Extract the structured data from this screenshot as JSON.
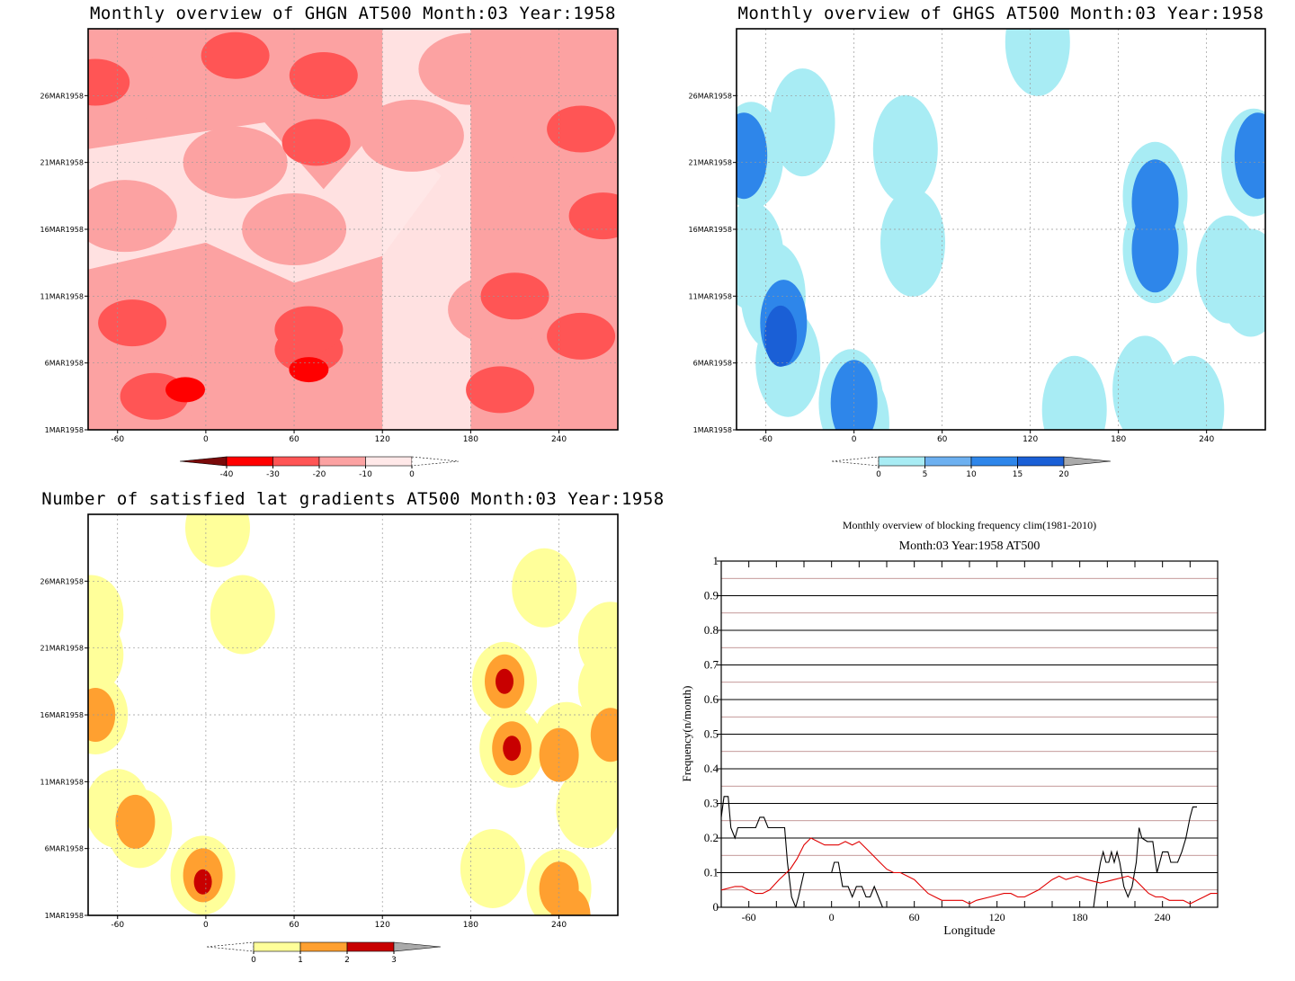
{
  "chart_data": [
    {
      "type": "heatmap",
      "title": "Monthly overview of GHGN AT500 Month:03 Year:1958",
      "xlabel": "",
      "ylabel": "",
      "x_ticks": [
        "-60",
        "0",
        "60",
        "120",
        "180",
        "240"
      ],
      "x_tick_values": [
        -60,
        0,
        60,
        120,
        180,
        240
      ],
      "xlim": [
        -80,
        280
      ],
      "y_ticks": [
        "1MAR1958",
        "6MAR1958",
        "11MAR1958",
        "16MAR1958",
        "21MAR1958",
        "26MAR1958"
      ],
      "y_tick_values": [
        1,
        6,
        11,
        16,
        21,
        26
      ],
      "ylim": [
        1,
        31
      ],
      "colorbar": {
        "labels": [
          "-40",
          "-30",
          "-20",
          "-10",
          "0"
        ],
        "levels": [
          -40,
          -30,
          -20,
          -10,
          0
        ],
        "colors": [
          "#7a0a0a",
          "#ff0000",
          "#ff5555",
          "#fca2a2",
          "#ffe8e8",
          "#ffffff"
        ]
      },
      "grid": true,
      "blobs": [
        {
          "x": 70,
          "y": 5.5,
          "level": -30
        },
        {
          "x": -14,
          "y": 4,
          "level": -30
        },
        {
          "x": 70,
          "y": 7,
          "level": -20
        },
        {
          "x": 70,
          "y": 8.5,
          "level": -20
        },
        {
          "x": -35,
          "y": 3.5,
          "level": -20
        },
        {
          "x": -50,
          "y": 9,
          "level": -20
        },
        {
          "x": 200,
          "y": 4,
          "level": -20
        },
        {
          "x": 210,
          "y": 11,
          "level": -20
        },
        {
          "x": 75,
          "y": 22.5,
          "level": -20
        },
        {
          "x": 80,
          "y": 27.5,
          "level": -20
        },
        {
          "x": 20,
          "y": 29,
          "level": -20
        },
        {
          "x": 255,
          "y": 23.5,
          "level": -20
        },
        {
          "x": 270,
          "y": 17,
          "level": -20
        },
        {
          "x": 255,
          "y": 8,
          "level": -20
        },
        {
          "x": -75,
          "y": 27,
          "level": -20
        },
        {
          "x": 55,
          "y": 8,
          "level": -10
        },
        {
          "x": -40,
          "y": 8,
          "level": -10
        },
        {
          "x": 240,
          "y": 7,
          "level": -10
        },
        {
          "x": 200,
          "y": 10,
          "level": -10
        },
        {
          "x": 240,
          "y": 20,
          "level": -10
        },
        {
          "x": 60,
          "y": 28,
          "level": -10
        },
        {
          "x": -20,
          "y": 26.5,
          "level": -10
        },
        {
          "x": -55,
          "y": 17,
          "level": -10
        },
        {
          "x": 20,
          "y": 21,
          "level": -10
        },
        {
          "x": 140,
          "y": 23,
          "level": -10
        },
        {
          "x": 180,
          "y": 28,
          "level": -10
        },
        {
          "x": 260,
          "y": 29,
          "level": -10
        },
        {
          "x": 60,
          "y": 16,
          "level": -10
        },
        {
          "x": 265,
          "y": 12,
          "level": -10
        }
      ]
    },
    {
      "type": "heatmap",
      "title": "Monthly overview of GHGS AT500 Month:03 Year:1958",
      "xlabel": "",
      "ylabel": "",
      "x_ticks": [
        "-60",
        "0",
        "60",
        "120",
        "180",
        "240"
      ],
      "x_tick_values": [
        -60,
        0,
        60,
        120,
        180,
        240
      ],
      "xlim": [
        -80,
        280
      ],
      "y_ticks": [
        "1MAR1958",
        "6MAR1958",
        "11MAR1958",
        "16MAR1958",
        "21MAR1958",
        "26MAR1958"
      ],
      "y_tick_values": [
        1,
        6,
        11,
        16,
        21,
        26
      ],
      "ylim": [
        1,
        31
      ],
      "colorbar": {
        "labels": [
          "0",
          "5",
          "10",
          "15",
          "20"
        ],
        "levels": [
          0,
          5,
          10,
          15,
          20
        ],
        "colors": [
          "#ffffff",
          "#a8ecf4",
          "#6db0f0",
          "#2e86ea",
          "#1a5fd6",
          "#aaaaaa"
        ]
      },
      "grid": true,
      "blobs": [
        {
          "x": -50,
          "y": 8,
          "level": 15
        },
        {
          "x": -48,
          "y": 9,
          "level": 10
        },
        {
          "x": -55,
          "y": 11,
          "level": 5
        },
        {
          "x": -45,
          "y": 6,
          "level": 5
        },
        {
          "x": -70,
          "y": 14,
          "level": 5
        },
        {
          "x": -75,
          "y": 21.5,
          "level": 10
        },
        {
          "x": -70,
          "y": 21.5,
          "level": 5
        },
        {
          "x": -2,
          "y": 3,
          "level": 5
        },
        {
          "x": 0,
          "y": 3,
          "level": 10
        },
        {
          "x": 35,
          "y": 22,
          "level": 5
        },
        {
          "x": 40,
          "y": 15,
          "level": 5
        },
        {
          "x": 125,
          "y": 30,
          "level": 5
        },
        {
          "x": 270,
          "y": 12,
          "level": 5
        },
        {
          "x": 255,
          "y": 13,
          "level": 5
        },
        {
          "x": 275,
          "y": 21.5,
          "level": 10
        },
        {
          "x": 272,
          "y": 21,
          "level": 5
        },
        {
          "x": 205,
          "y": 18,
          "level": 10
        },
        {
          "x": 205,
          "y": 18.5,
          "level": 5
        },
        {
          "x": 205,
          "y": 14.5,
          "level": 10
        },
        {
          "x": 205,
          "y": 14.5,
          "level": 5
        },
        {
          "x": 198,
          "y": 4,
          "level": 5
        },
        {
          "x": 230,
          "y": 2.5,
          "level": 5
        },
        {
          "x": -35,
          "y": 24,
          "level": 5
        },
        {
          "x": 2,
          "y": 1.5,
          "level": 5
        },
        {
          "x": 150,
          "y": 2.5,
          "level": 5
        }
      ]
    },
    {
      "type": "heatmap",
      "title": "Number of satisfied lat gradients AT500 Month:03 Year:1958",
      "xlabel": "",
      "ylabel": "",
      "x_ticks": [
        "-60",
        "0",
        "60",
        "120",
        "180",
        "240"
      ],
      "x_tick_values": [
        -60,
        0,
        60,
        120,
        180,
        240
      ],
      "xlim": [
        -80,
        280
      ],
      "y_ticks": [
        "1MAR1958",
        "6MAR1958",
        "11MAR1958",
        "16MAR1958",
        "21MAR1958",
        "26MAR1958"
      ],
      "y_tick_values": [
        1,
        6,
        11,
        16,
        21,
        26
      ],
      "ylim": [
        1,
        31
      ],
      "colorbar": {
        "labels": [
          "0",
          "1",
          "2",
          "3"
        ],
        "levels": [
          0,
          1,
          2,
          3
        ],
        "colors": [
          "#ffffff",
          "#ffff9a",
          "#ffa030",
          "#c80000",
          "#aaaaaa"
        ]
      },
      "grid": true,
      "blobs": [
        {
          "x": -2,
          "y": 3.5,
          "level": 3
        },
        {
          "x": -2,
          "y": 4,
          "level": 2
        },
        {
          "x": -2,
          "y": 4,
          "level": 1
        },
        {
          "x": -48,
          "y": 8,
          "level": 2
        },
        {
          "x": -45,
          "y": 7.5,
          "level": 1
        },
        {
          "x": -60,
          "y": 9,
          "level": 1
        },
        {
          "x": -75,
          "y": 16,
          "level": 2
        },
        {
          "x": -75,
          "y": 16,
          "level": 1
        },
        {
          "x": -78,
          "y": 20.5,
          "level": 1
        },
        {
          "x": -78,
          "y": 23.5,
          "level": 1
        },
        {
          "x": 25,
          "y": 23.5,
          "level": 1
        },
        {
          "x": 8,
          "y": 30,
          "level": 1
        },
        {
          "x": 203,
          "y": 18.5,
          "level": 3
        },
        {
          "x": 203,
          "y": 18.5,
          "level": 2
        },
        {
          "x": 203,
          "y": 18.5,
          "level": 1
        },
        {
          "x": 208,
          "y": 13.5,
          "level": 3
        },
        {
          "x": 208,
          "y": 13.5,
          "level": 2
        },
        {
          "x": 208,
          "y": 13.5,
          "level": 1
        },
        {
          "x": 240,
          "y": 3,
          "level": 2
        },
        {
          "x": 240,
          "y": 3,
          "level": 1
        },
        {
          "x": 195,
          "y": 4.5,
          "level": 1
        },
        {
          "x": 240,
          "y": 13,
          "level": 2
        },
        {
          "x": 245,
          "y": 14,
          "level": 1
        },
        {
          "x": 275,
          "y": 14.5,
          "level": 2
        },
        {
          "x": 268,
          "y": 11,
          "level": 1
        },
        {
          "x": 260,
          "y": 9,
          "level": 1
        },
        {
          "x": 275,
          "y": 18,
          "level": 1
        },
        {
          "x": 275,
          "y": 21.5,
          "level": 1
        },
        {
          "x": 230,
          "y": 25.5,
          "level": 1
        },
        {
          "x": 248,
          "y": 1,
          "level": 2
        }
      ]
    },
    {
      "type": "line",
      "title": "Monthly overview of blocking frequency clim(1981-2010)",
      "subtitle": "Month:03 Year:1958  AT500",
      "xlabel": "Longitude",
      "ylabel": "Frequency(n/month)",
      "x_ticks": [
        "-60",
        "0",
        "60",
        "120",
        "180",
        "240"
      ],
      "x_tick_values": [
        -60,
        0,
        60,
        120,
        180,
        240
      ],
      "xlim": [
        -80,
        280
      ],
      "y_ticks": [
        "0",
        "0.1",
        "0.2",
        "0.3",
        "0.4",
        "0.5",
        "0.6",
        "0.7",
        "0.8",
        "0.9",
        "1"
      ],
      "y_tick_values": [
        0,
        0.1,
        0.2,
        0.3,
        0.4,
        0.5,
        0.6,
        0.7,
        0.8,
        0.9,
        1
      ],
      "ylim": [
        0,
        1
      ],
      "grid": true,
      "series": [
        {
          "color": "#000000",
          "points": [
            [
              -80,
              0.26
            ],
            [
              -78,
              0.32
            ],
            [
              -75,
              0.32
            ],
            [
              -73,
              0.23
            ],
            [
              -70,
              0.2
            ],
            [
              -68,
              0.23
            ],
            [
              -60,
              0.23
            ],
            [
              -55,
              0.23
            ],
            [
              -52,
              0.26
            ],
            [
              -49,
              0.26
            ],
            [
              -46,
              0.23
            ],
            [
              -38,
              0.23
            ],
            [
              -34,
              0.23
            ],
            [
              -32,
              0.13
            ],
            [
              -29,
              0.03
            ],
            [
              -26,
              0
            ],
            [
              -24,
              0.03
            ],
            [
              -20,
              0.1
            ],
            [
              -10,
              0.1
            ],
            [
              0,
              0.1
            ],
            [
              2,
              0.13
            ],
            [
              5,
              0.13
            ],
            [
              8,
              0.06
            ],
            [
              12,
              0.06
            ],
            [
              15,
              0.03
            ],
            [
              18,
              0.06
            ],
            [
              22,
              0.06
            ],
            [
              25,
              0.03
            ],
            [
              28,
              0.03
            ],
            [
              31,
              0.06
            ],
            [
              34,
              0.03
            ],
            [
              37,
              0
            ],
            [
              40,
              0
            ],
            [
              80,
              0
            ],
            [
              120,
              0
            ],
            [
              160,
              0
            ],
            [
              190,
              0
            ],
            [
              192,
              0.06
            ],
            [
              195,
              0.13
            ],
            [
              197,
              0.16
            ],
            [
              199,
              0.13
            ],
            [
              201,
              0.13
            ],
            [
              203,
              0.16
            ],
            [
              205,
              0.13
            ],
            [
              207,
              0.16
            ],
            [
              209,
              0.13
            ],
            [
              212,
              0.06
            ],
            [
              215,
              0.03
            ],
            [
              218,
              0.06
            ],
            [
              221,
              0.13
            ],
            [
              223,
              0.23
            ],
            [
              225,
              0.2
            ],
            [
              229,
              0.19
            ],
            [
              233,
              0.19
            ],
            [
              236,
              0.1
            ],
            [
              238,
              0.13
            ],
            [
              240,
              0.16
            ],
            [
              244,
              0.16
            ],
            [
              246,
              0.13
            ],
            [
              251,
              0.13
            ],
            [
              254,
              0.16
            ],
            [
              257,
              0.2
            ],
            [
              260,
              0.26
            ],
            [
              262,
              0.29
            ],
            [
              265,
              0.29
            ]
          ]
        },
        {
          "color": "#e00000",
          "points": [
            [
              -80,
              0.05
            ],
            [
              -70,
              0.06
            ],
            [
              -65,
              0.06
            ],
            [
              -60,
              0.05
            ],
            [
              -55,
              0.04
            ],
            [
              -50,
              0.04
            ],
            [
              -45,
              0.05
            ],
            [
              -38,
              0.08
            ],
            [
              -30,
              0.11
            ],
            [
              -25,
              0.14
            ],
            [
              -20,
              0.18
            ],
            [
              -15,
              0.2
            ],
            [
              -10,
              0.19
            ],
            [
              -5,
              0.18
            ],
            [
              0,
              0.18
            ],
            [
              5,
              0.18
            ],
            [
              10,
              0.19
            ],
            [
              15,
              0.18
            ],
            [
              20,
              0.19
            ],
            [
              25,
              0.17
            ],
            [
              30,
              0.15
            ],
            [
              35,
              0.13
            ],
            [
              40,
              0.11
            ],
            [
              45,
              0.1
            ],
            [
              50,
              0.1
            ],
            [
              55,
              0.09
            ],
            [
              60,
              0.08
            ],
            [
              65,
              0.06
            ],
            [
              70,
              0.04
            ],
            [
              75,
              0.03
            ],
            [
              80,
              0.02
            ],
            [
              85,
              0.02
            ],
            [
              95,
              0.02
            ],
            [
              100,
              0.01
            ],
            [
              105,
              0.02
            ],
            [
              115,
              0.03
            ],
            [
              125,
              0.04
            ],
            [
              130,
              0.04
            ],
            [
              135,
              0.03
            ],
            [
              140,
              0.03
            ],
            [
              150,
              0.05
            ],
            [
              160,
              0.08
            ],
            [
              165,
              0.09
            ],
            [
              170,
              0.08
            ],
            [
              178,
              0.09
            ],
            [
              185,
              0.08
            ],
            [
              195,
              0.07
            ],
            [
              205,
              0.08
            ],
            [
              215,
              0.09
            ],
            [
              220,
              0.08
            ],
            [
              225,
              0.06
            ],
            [
              230,
              0.04
            ],
            [
              235,
              0.03
            ],
            [
              240,
              0.03
            ],
            [
              245,
              0.02
            ],
            [
              250,
              0.02
            ],
            [
              255,
              0.02
            ],
            [
              260,
              0.01
            ],
            [
              265,
              0.02
            ],
            [
              270,
              0.03
            ],
            [
              275,
              0.04
            ],
            [
              280,
              0.04
            ]
          ]
        }
      ]
    }
  ]
}
